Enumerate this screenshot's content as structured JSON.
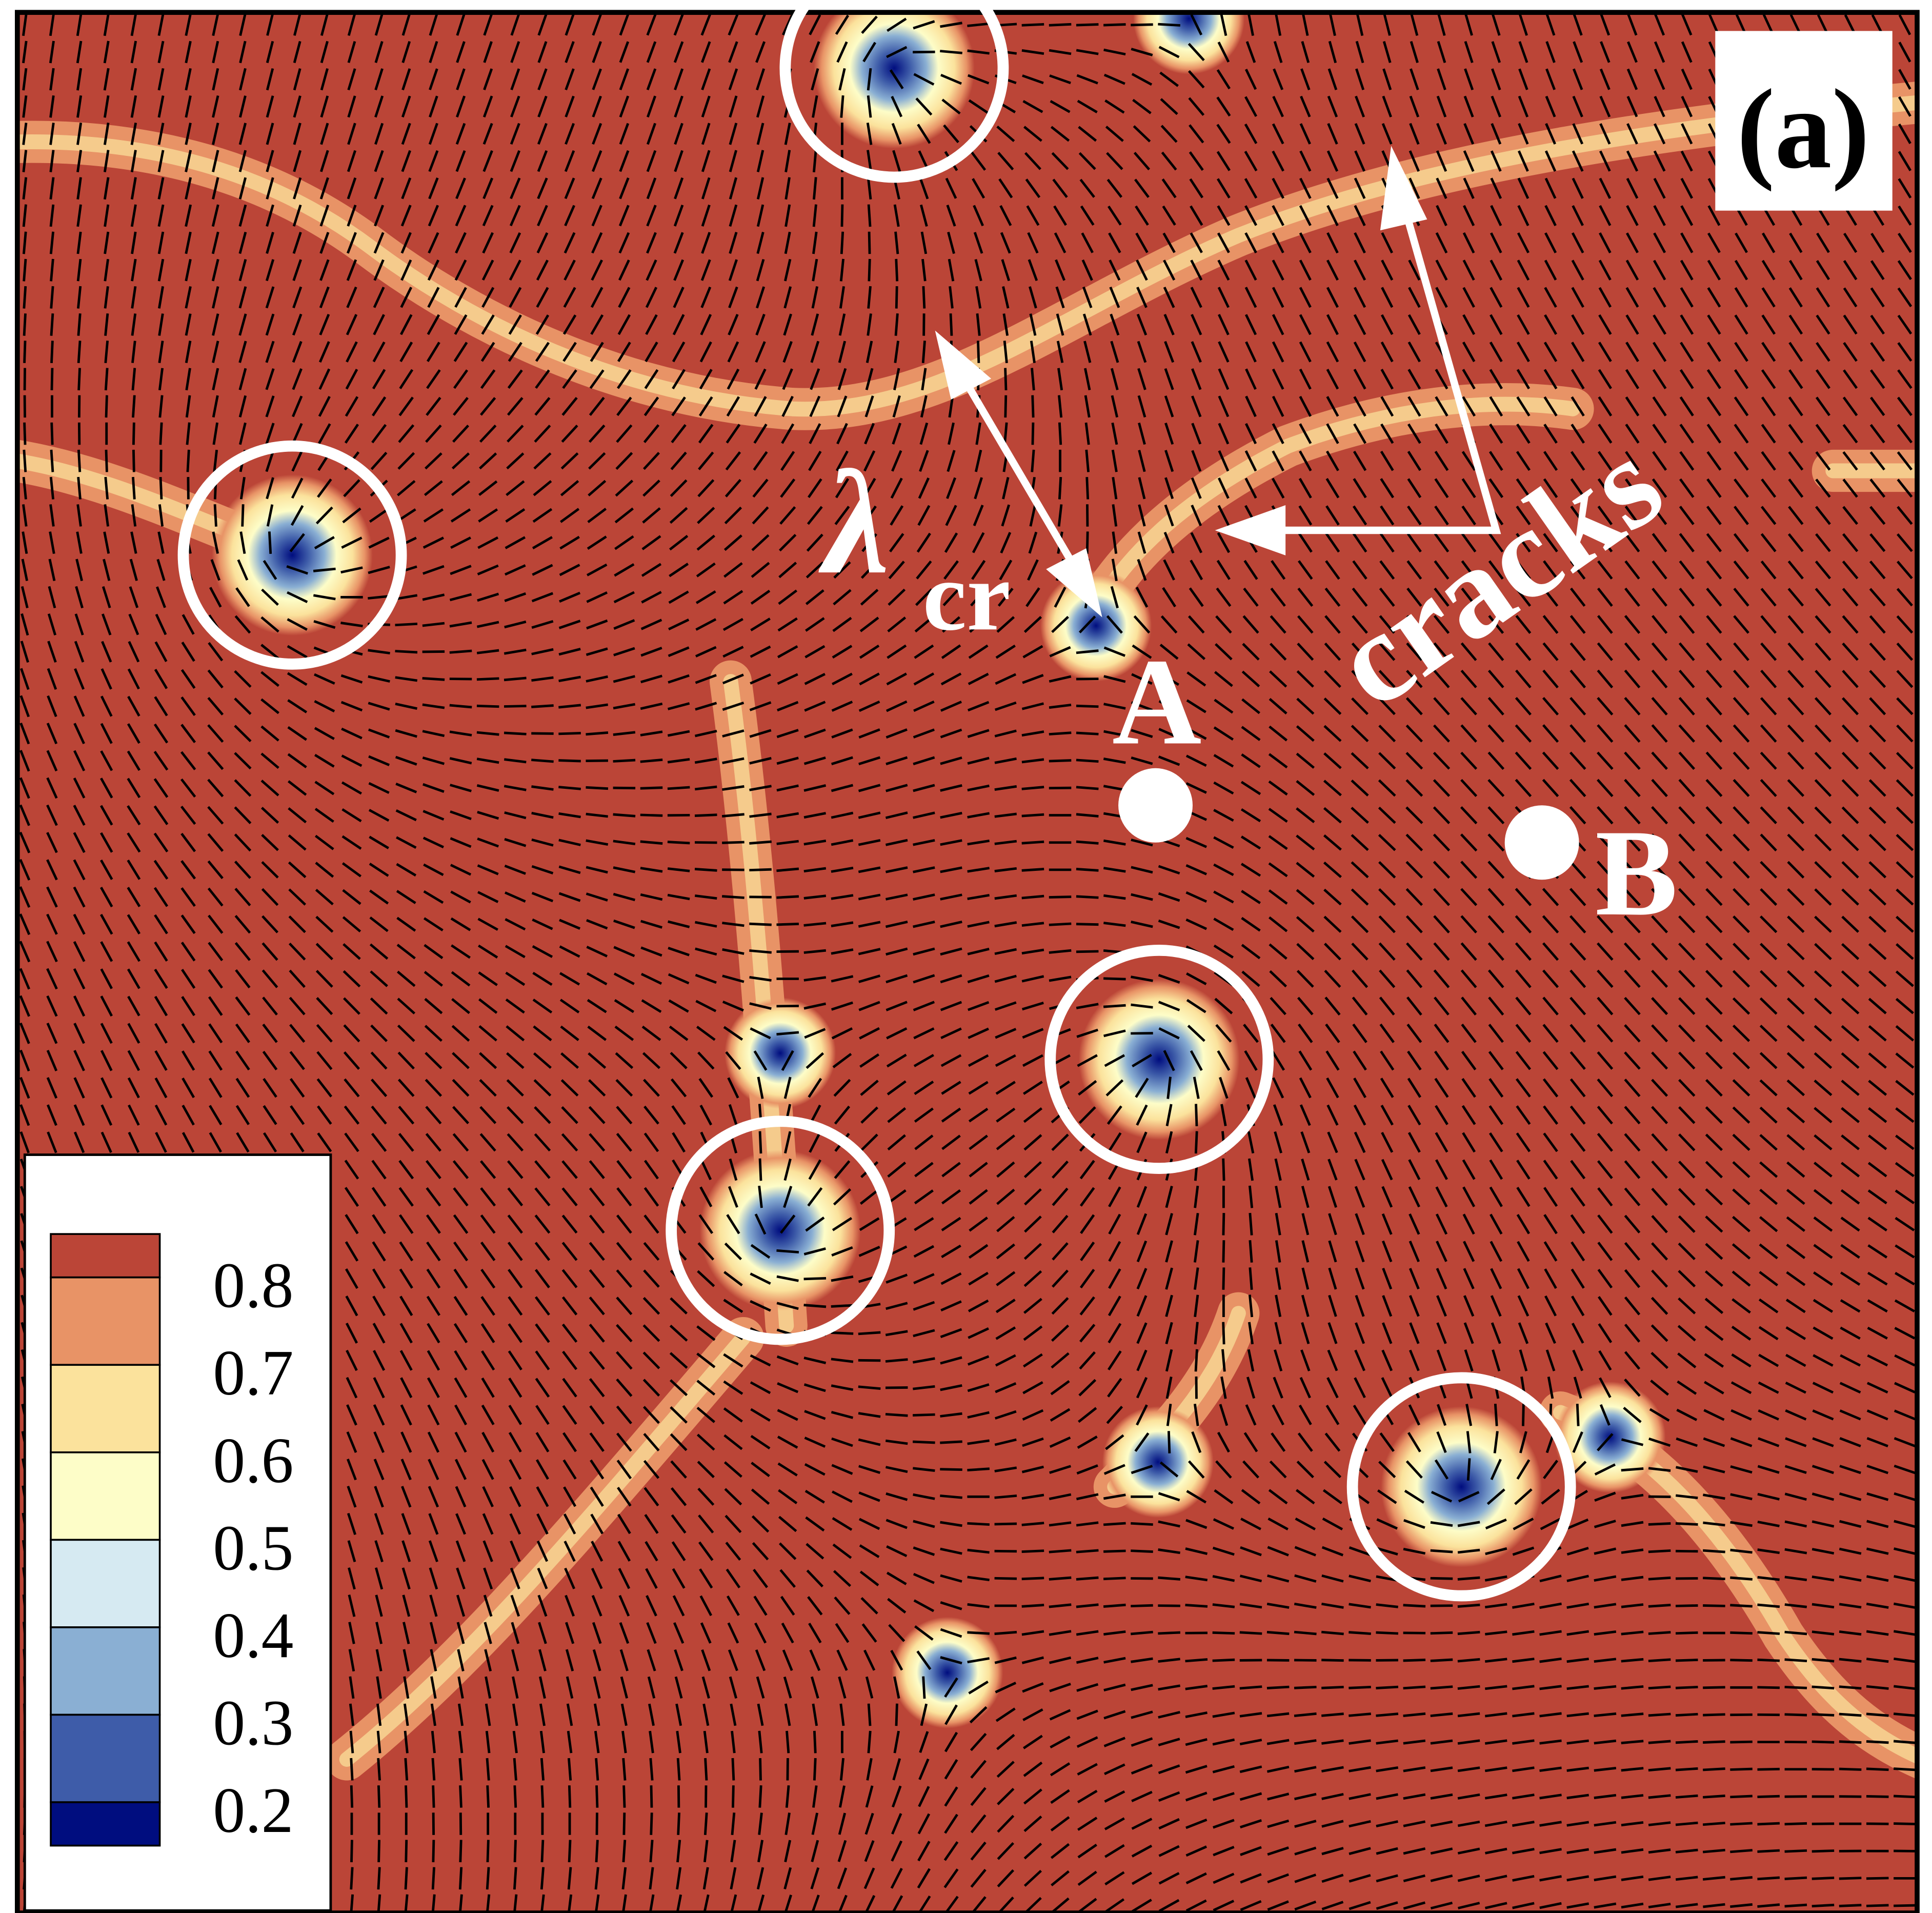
{
  "chart_data": {
    "type": "heatmap",
    "panel_label": "(a)",
    "colorbar": {
      "ticks": [
        "0.8",
        "0.7",
        "0.6",
        "0.5",
        "0.4",
        "0.3",
        "0.2"
      ],
      "levels": [
        {
          "color": "#BB4537"
        },
        {
          "color": "#E89366"
        },
        {
          "color": "#FBE29C"
        },
        {
          "color": "#FDFDC8"
        },
        {
          "color": "#D6EAF2"
        },
        {
          "color": "#8AAFD3"
        },
        {
          "color": "#3E5CA9"
        },
        {
          "color": "#000D7F"
        }
      ]
    },
    "annotations": {
      "lambda": "λ",
      "lambda_sub": "cr",
      "cracks": "cracks",
      "point_a": "A",
      "point_b": "B"
    },
    "background_color": "#BB4537",
    "crack_color": "#E89366",
    "director_field": "black line segments",
    "defect_markers": "white circles"
  }
}
